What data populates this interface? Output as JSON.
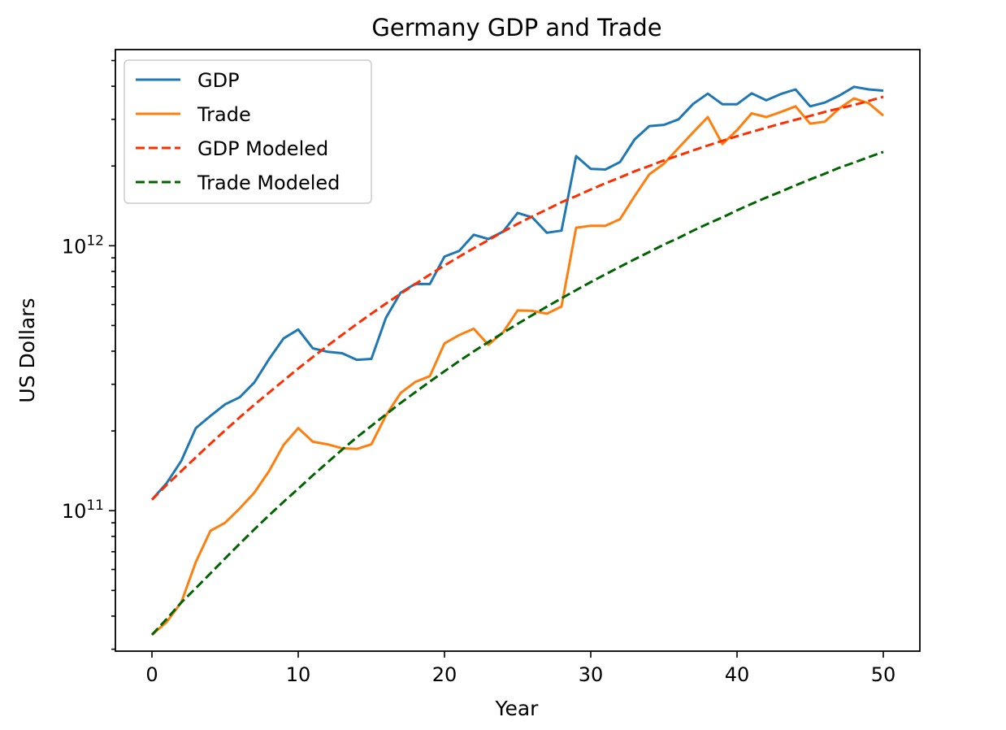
{
  "chart_data": {
    "type": "line",
    "title": "Germany GDP and Trade",
    "xlabel": "Year",
    "ylabel": "US Dollars",
    "y_scale": "log",
    "grid": false,
    "legend_position": "upper-left",
    "xlim": [
      -2.5,
      52.5
    ],
    "ylim": [
      29500000000,
      5500000000000
    ],
    "x_ticks": [
      0,
      10,
      20,
      30,
      40,
      50
    ],
    "y_ticks": [
      {
        "value": 100000000000,
        "base": "10",
        "exp": "11"
      },
      {
        "value": 1000000000000,
        "base": "10",
        "exp": "12"
      }
    ],
    "x": [
      0,
      1,
      2,
      3,
      4,
      5,
      6,
      7,
      8,
      9,
      10,
      11,
      12,
      13,
      14,
      15,
      16,
      17,
      18,
      19,
      20,
      21,
      22,
      23,
      24,
      25,
      26,
      27,
      28,
      29,
      30,
      31,
      32,
      33,
      34,
      35,
      36,
      37,
      38,
      39,
      40,
      41,
      42,
      43,
      44,
      45,
      46,
      47,
      48,
      49,
      50
    ],
    "series": [
      {
        "name": "GDP",
        "color": "#1f77b4",
        "style": "solid",
        "values": [
          110000000000,
          127000000000,
          154000000000,
          205000000000,
          228000000000,
          252000000000,
          268000000000,
          305000000000,
          373000000000,
          447000000000,
          483000000000,
          410000000000,
          398000000000,
          393000000000,
          371000000000,
          374000000000,
          535000000000,
          665000000000,
          718000000000,
          717000000000,
          910000000000,
          956000000000,
          1100000000000,
          1060000000000,
          1130000000000,
          1330000000000,
          1280000000000,
          1120000000000,
          1140000000000,
          2180000000000,
          1950000000000,
          1940000000000,
          2070000000000,
          2520000000000,
          2830000000000,
          2860000000000,
          3000000000000,
          3430000000000,
          3750000000000,
          3420000000000,
          3420000000000,
          3760000000000,
          3540000000000,
          3740000000000,
          3890000000000,
          3360000000000,
          3470000000000,
          3690000000000,
          3980000000000,
          3890000000000,
          3850000000000
        ]
      },
      {
        "name": "Trade",
        "color": "#ff7f0e",
        "style": "solid",
        "values": [
          34000000000,
          38000000000,
          45000000000,
          64000000000,
          84000000000,
          90000000000,
          102000000000,
          117000000000,
          141000000000,
          177000000000,
          205000000000,
          182000000000,
          178000000000,
          172000000000,
          171000000000,
          178000000000,
          229000000000,
          278000000000,
          306000000000,
          322000000000,
          428000000000,
          460000000000,
          486000000000,
          423000000000,
          471000000000,
          570000000000,
          568000000000,
          554000000000,
          590000000000,
          1170000000000,
          1190000000000,
          1190000000000,
          1260000000000,
          1540000000000,
          1860000000000,
          2040000000000,
          2340000000000,
          2680000000000,
          3060000000000,
          2420000000000,
          2730000000000,
          3160000000000,
          3060000000000,
          3200000000000,
          3360000000000,
          2890000000000,
          2940000000000,
          3300000000000,
          3600000000000,
          3450000000000,
          3100000000000
        ]
      },
      {
        "name": "GDP Modeled",
        "color": "#ff2e00",
        "style": "dashed",
        "values": [
          110000000000,
          125000000000,
          141000000000,
          159000000000,
          179000000000,
          201000000000,
          225000000000,
          251000000000,
          279000000000,
          310000000000,
          344000000000,
          380000000000,
          419000000000,
          461000000000,
          506000000000,
          554000000000,
          605000000000,
          659000000000,
          717000000000,
          778000000000,
          842000000000,
          909000000000,
          979000000000,
          1050000000000,
          1130000000000,
          1210000000000,
          1290000000000,
          1370000000000,
          1460000000000,
          1540000000000,
          1630000000000,
          1720000000000,
          1810000000000,
          1910000000000,
          2000000000000,
          2100000000000,
          2190000000000,
          2290000000000,
          2390000000000,
          2490000000000,
          2590000000000,
          2690000000000,
          2790000000000,
          2890000000000,
          2990000000000,
          3090000000000,
          3200000000000,
          3300000000000,
          3400000000000,
          3520000000000,
          3650000000000
        ]
      },
      {
        "name": "Trade Modeled",
        "color": "#006400",
        "style": "dashed",
        "values": [
          34000000000,
          39000000000,
          45000000000,
          51000000000,
          58000000000,
          66000000000,
          75000000000,
          85000000000,
          96000000000,
          108000000000,
          121000000000,
          136000000000,
          152000000000,
          170000000000,
          189000000000,
          209000000000,
          231000000000,
          255000000000,
          280000000000,
          307000000000,
          336000000000,
          367000000000,
          399000000000,
          433000000000,
          469000000000,
          507000000000,
          547000000000,
          589000000000,
          633000000000,
          680000000000,
          729000000000,
          780000000000,
          833000000000,
          889000000000,
          947000000000,
          1010000000000,
          1070000000000,
          1140000000000,
          1210000000000,
          1280000000000,
          1360000000000,
          1440000000000,
          1520000000000,
          1600000000000,
          1690000000000,
          1780000000000,
          1870000000000,
          1970000000000,
          2060000000000,
          2160000000000,
          2260000000000
        ]
      }
    ]
  }
}
